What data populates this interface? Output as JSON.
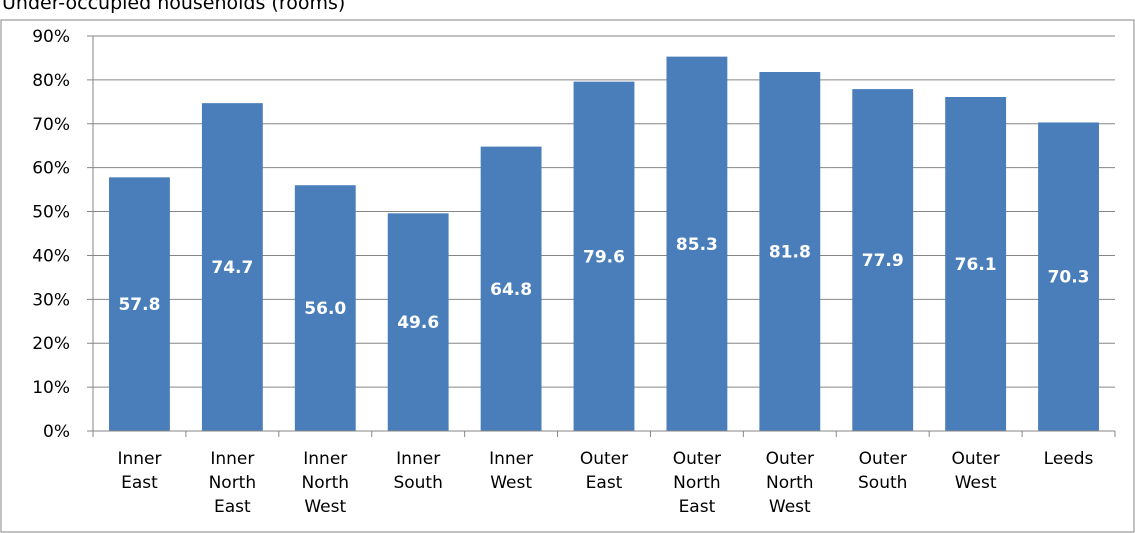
{
  "chart_data": {
    "type": "bar",
    "title": "Under-occupied households (rooms)",
    "categories": [
      [
        "Inner",
        "East"
      ],
      [
        "Inner",
        "North",
        "East"
      ],
      [
        "Inner",
        "North",
        "West"
      ],
      [
        "Inner",
        "South"
      ],
      [
        "Inner",
        "West"
      ],
      [
        "Outer",
        "East"
      ],
      [
        "Outer",
        "North",
        "East"
      ],
      [
        "Outer",
        "North",
        "West"
      ],
      [
        "Outer",
        "South"
      ],
      [
        "Outer",
        "West"
      ],
      [
        "Leeds"
      ]
    ],
    "values": [
      57.8,
      74.7,
      56.0,
      49.6,
      64.8,
      79.6,
      85.3,
      81.8,
      77.9,
      76.1,
      70.3
    ],
    "data_labels": [
      "57.8",
      "74.7",
      "56.0",
      "49.6",
      "64.8",
      "79.6",
      "85.3",
      "81.8",
      "77.9",
      "76.1",
      "70.3"
    ],
    "ylim": [
      0,
      90
    ],
    "yticks": [
      0,
      10,
      20,
      30,
      40,
      50,
      60,
      70,
      80,
      90
    ],
    "ytick_labels": [
      "0%",
      "10%",
      "20%",
      "30%",
      "40%",
      "50%",
      "60%",
      "70%",
      "80%",
      "90%"
    ],
    "xlabel": "",
    "ylabel": "",
    "grid": true,
    "legend": "none",
    "bar_color": "#4A7EBB",
    "grid_color": "#868686"
  }
}
